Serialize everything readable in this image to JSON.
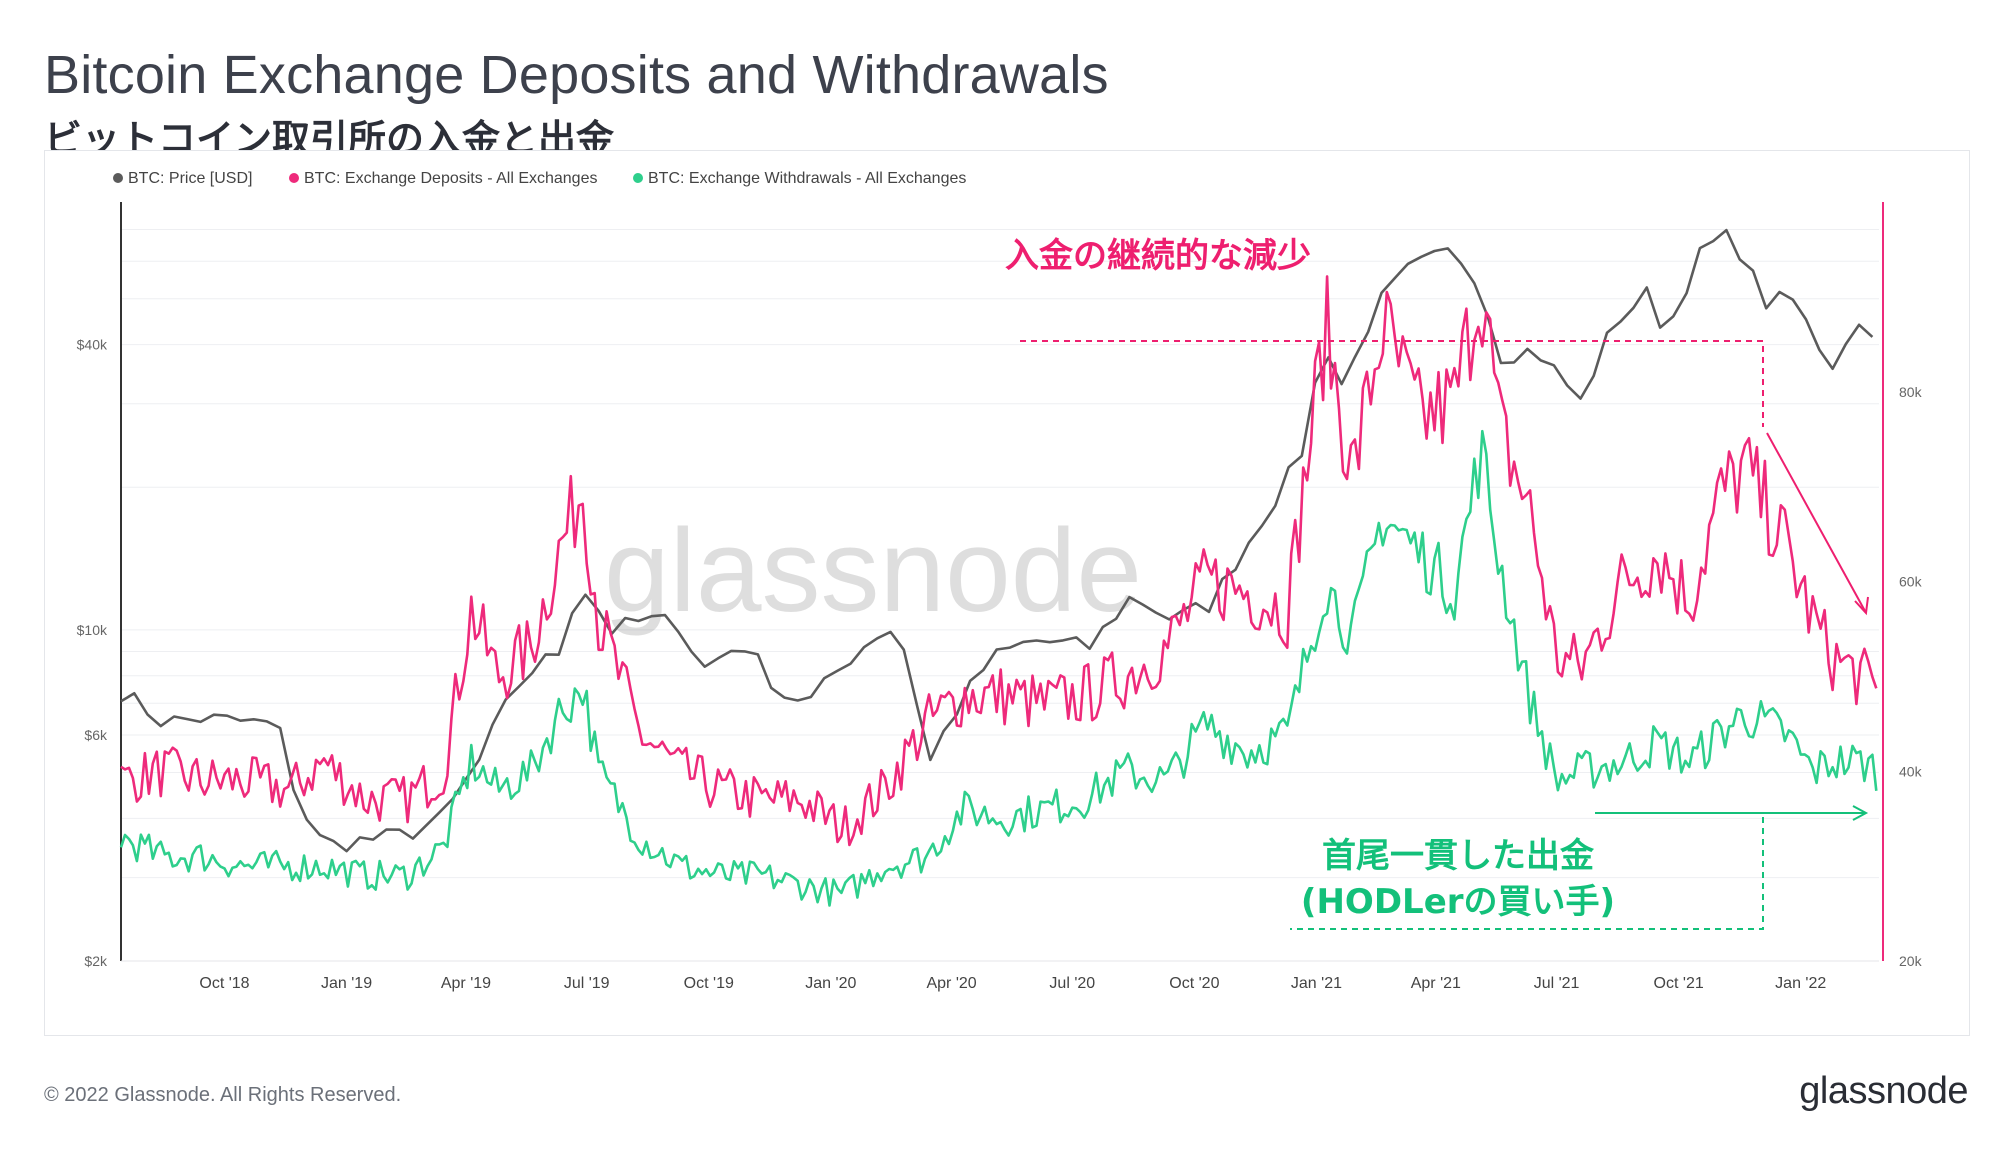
{
  "title": "Bitcoin Exchange Deposits and Withdrawals",
  "subtitle": "ビットコイン取引所の入金と出金",
  "footer": {
    "copyright": "© 2022 Glassnode. All Rights Reserved.",
    "logo": "glassnode"
  },
  "colors": {
    "price": "#5b5b5b",
    "deposits": "#ee2a7b",
    "withdrawals": "#2ecf8c",
    "annotation_deposits": "#ee1f6f",
    "annotation_withdrawals": "#13c07a"
  },
  "chart_data": {
    "type": "line",
    "watermark": "glassnode",
    "legend": [
      {
        "label": "BTC: Price [USD]",
        "color": "#5b5b5b"
      },
      {
        "label": "BTC: Exchange Deposits - All Exchanges",
        "color": "#ee2a7b"
      },
      {
        "label": "BTC: Exchange Withdrawals - All Exchanges",
        "color": "#2ecf8c"
      }
    ],
    "legend_position": "top-left",
    "x_range": [
      "2018-07-15",
      "2022-03-01"
    ],
    "x_ticks": [
      {
        "label": "Oct '18",
        "date": "2018-10-01"
      },
      {
        "label": "Jan '19",
        "date": "2019-01-01"
      },
      {
        "label": "Apr '19",
        "date": "2019-04-01"
      },
      {
        "label": "Jul '19",
        "date": "2019-07-01"
      },
      {
        "label": "Oct '19",
        "date": "2019-10-01"
      },
      {
        "label": "Jan '20",
        "date": "2020-01-01"
      },
      {
        "label": "Apr '20",
        "date": "2020-04-01"
      },
      {
        "label": "Jul '20",
        "date": "2020-07-01"
      },
      {
        "label": "Oct '20",
        "date": "2020-10-01"
      },
      {
        "label": "Jan '21",
        "date": "2021-01-01"
      },
      {
        "label": "Apr '21",
        "date": "2021-04-01"
      },
      {
        "label": "Jul '21",
        "date": "2021-07-01"
      },
      {
        "label": "Oct '21",
        "date": "2021-10-01"
      },
      {
        "label": "Jan '22",
        "date": "2022-01-01"
      }
    ],
    "y_left": {
      "scale": "log",
      "range": [
        2000,
        80000
      ],
      "ticks": [
        {
          "label": "$2k",
          "value": 2000
        },
        {
          "label": "$6k",
          "value": 6000
        },
        {
          "label": "$10k",
          "value": 10000
        },
        {
          "label": "$40k",
          "value": 40000
        }
      ]
    },
    "y_right": {
      "scale": "linear",
      "range": [
        20000,
        100000
      ],
      "ticks": [
        {
          "label": "20k",
          "value": 20000
        },
        {
          "label": "40k",
          "value": 40000
        },
        {
          "label": "60k",
          "value": 60000
        },
        {
          "label": "80k",
          "value": 80000
        }
      ]
    },
    "grid": true,
    "series": [
      {
        "name": "BTC: Price [USD]",
        "axis": "left",
        "color": "#5b5b5b",
        "x": [
          "2018-07-15",
          "2018-08-15",
          "2018-09-15",
          "2018-10-15",
          "2018-11-10",
          "2018-11-25",
          "2018-12-15",
          "2019-01-15",
          "2019-02-15",
          "2019-03-15",
          "2019-04-10",
          "2019-05-15",
          "2019-06-10",
          "2019-06-26",
          "2019-07-20",
          "2019-08-15",
          "2019-09-10",
          "2019-09-25",
          "2019-10-26",
          "2019-11-25",
          "2019-12-18",
          "2020-01-15",
          "2020-02-13",
          "2020-03-01",
          "2020-03-12",
          "2020-04-01",
          "2020-05-01",
          "2020-06-01",
          "2020-07-15",
          "2020-08-15",
          "2020-09-15",
          "2020-10-15",
          "2020-11-15",
          "2020-12-01",
          "2020-12-20",
          "2021-01-08",
          "2021-01-22",
          "2021-02-15",
          "2021-03-13",
          "2021-04-14",
          "2021-05-01",
          "2021-05-19",
          "2021-06-15",
          "2021-07-20",
          "2021-08-15",
          "2021-09-07",
          "2021-09-22",
          "2021-10-20",
          "2021-11-10",
          "2021-12-04",
          "2021-12-25",
          "2022-01-10",
          "2022-01-24",
          "2022-02-10",
          "2022-03-01"
        ],
        "y": [
          7400,
          6400,
          6500,
          6400,
          6300,
          4300,
          3500,
          3600,
          3700,
          4000,
          5200,
          8000,
          9000,
          12500,
          10000,
          10500,
          10300,
          8200,
          9400,
          7300,
          7100,
          8700,
          10200,
          8700,
          5000,
          6500,
          8700,
          9500,
          9200,
          11800,
          10500,
          11400,
          16000,
          19000,
          23000,
          40000,
          32000,
          48000,
          58000,
          63000,
          56000,
          38000,
          39000,
          30000,
          45000,
          51000,
          42000,
          64000,
          68000,
          49000,
          50000,
          42000,
          36000,
          44000,
          43000
        ]
      },
      {
        "name": "BTC: Exchange Deposits - All Exchanges",
        "axis": "right",
        "color": "#ee2a7b",
        "x": [
          "2018-07-15",
          "2018-08-15",
          "2018-09-15",
          "2018-10-15",
          "2018-11-20",
          "2018-12-15",
          "2019-01-15",
          "2019-02-15",
          "2019-03-15",
          "2019-04-05",
          "2019-04-25",
          "2019-05-20",
          "2019-06-10",
          "2019-06-28",
          "2019-07-10",
          "2019-08-10",
          "2019-09-10",
          "2019-10-10",
          "2019-11-10",
          "2019-12-10",
          "2020-01-10",
          "2020-02-10",
          "2020-03-13",
          "2020-04-10",
          "2020-05-10",
          "2020-06-10",
          "2020-07-10",
          "2020-08-10",
          "2020-09-10",
          "2020-10-10",
          "2020-11-10",
          "2020-12-10",
          "2021-01-08",
          "2021-01-28",
          "2021-02-20",
          "2021-03-20",
          "2021-04-15",
          "2021-05-05",
          "2021-05-19",
          "2021-06-10",
          "2021-07-01",
          "2021-07-20",
          "2021-08-20",
          "2021-09-15",
          "2021-10-10",
          "2021-11-01",
          "2021-11-20",
          "2021-12-20",
          "2022-01-10",
          "2022-01-25",
          "2022-02-15",
          "2022-03-01"
        ],
        "y": [
          39000,
          40000,
          39000,
          39000,
          38000,
          41000,
          37000,
          37000,
          40000,
          57000,
          50000,
          53000,
          63000,
          70000,
          56000,
          44000,
          40000,
          38000,
          37000,
          37000,
          34000,
          38000,
          45000,
          48000,
          48000,
          47000,
          48000,
          50000,
          53000,
          60000,
          59000,
          57000,
          87000,
          71000,
          87000,
          77000,
          79000,
          92000,
          76000,
          68000,
          52000,
          51000,
          60000,
          63000,
          58000,
          69000,
          72000,
          64000,
          56000,
          52000,
          50000,
          48000
        ]
      },
      {
        "name": "BTC: Exchange Withdrawals - All Exchanges",
        "axis": "right",
        "color": "#2ecf8c",
        "x": [
          "2018-07-15",
          "2018-08-15",
          "2018-09-15",
          "2018-10-15",
          "2018-11-20",
          "2018-12-15",
          "2019-01-15",
          "2019-02-15",
          "2019-03-15",
          "2019-04-05",
          "2019-04-25",
          "2019-05-20",
          "2019-06-10",
          "2019-06-28",
          "2019-07-10",
          "2019-08-10",
          "2019-09-10",
          "2019-10-10",
          "2019-11-10",
          "2019-12-10",
          "2020-01-10",
          "2020-02-10",
          "2020-03-13",
          "2020-04-10",
          "2020-05-10",
          "2020-06-10",
          "2020-07-10",
          "2020-08-10",
          "2020-09-10",
          "2020-10-10",
          "2020-11-10",
          "2020-12-10",
          "2021-01-08",
          "2021-01-28",
          "2021-02-20",
          "2021-03-20",
          "2021-04-15",
          "2021-05-05",
          "2021-05-19",
          "2021-06-10",
          "2021-07-01",
          "2021-07-20",
          "2021-08-20",
          "2021-09-15",
          "2021-10-10",
          "2021-11-01",
          "2021-11-20",
          "2021-12-20",
          "2022-01-10",
          "2022-01-25",
          "2022-02-15",
          "2022-03-01"
        ],
        "y": [
          33000,
          31000,
          31000,
          30000,
          30000,
          30000,
          29000,
          29000,
          32000,
          41000,
          38000,
          40000,
          46000,
          49000,
          40000,
          33000,
          30000,
          29000,
          29000,
          28000,
          27000,
          30000,
          31000,
          36000,
          35000,
          36000,
          37000,
          40000,
          39000,
          45000,
          42000,
          44000,
          60000,
          54000,
          67000,
          63000,
          59000,
          74000,
          62000,
          48000,
          39000,
          40000,
          41000,
          43000,
          41000,
          44000,
          46000,
          44000,
          40000,
          41000,
          41000,
          40000
        ]
      }
    ],
    "annotations": [
      {
        "text": "入金の継続的な減少",
        "color": "#ee1f6f"
      },
      {
        "text": "首尾一貫した出金",
        "color": "#13c07a"
      },
      {
        "text": "(HODLerの買い手)",
        "color": "#13c07a"
      }
    ]
  }
}
